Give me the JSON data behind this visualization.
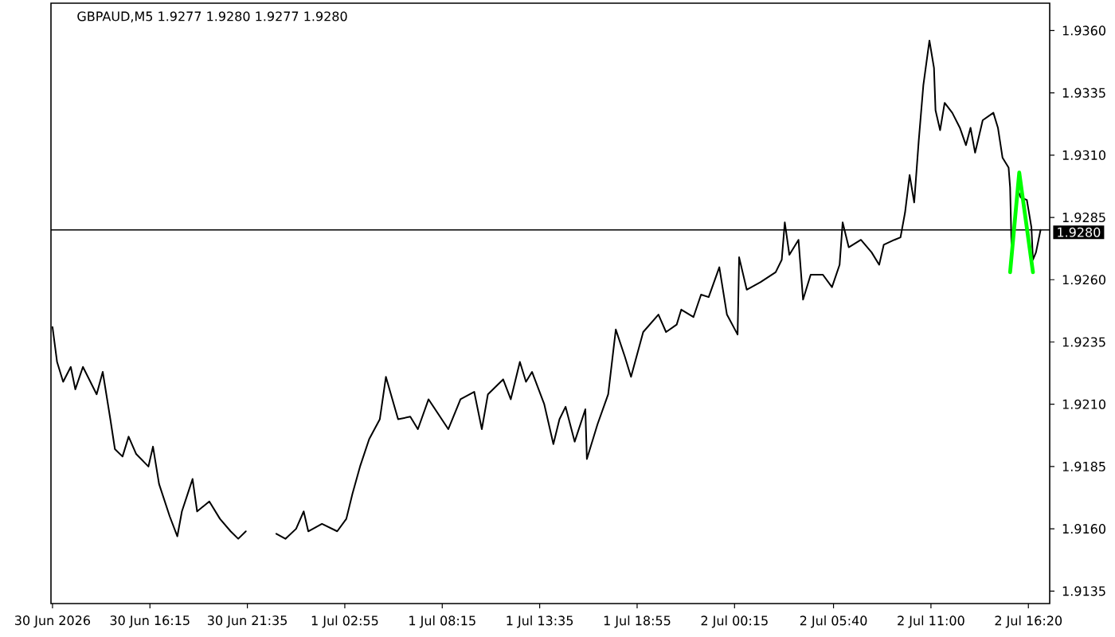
{
  "chart_data": {
    "type": "line",
    "title": "GBPAUD,M5 1.9277 1.9280 1.9277 1.9280",
    "xlim": [
      "2026-06-30T10:50",
      "2026-07-02T17:30"
    ],
    "xticks": [
      {
        "value": "2026-06-30T10:55",
        "label": "30 Jun 2026"
      },
      {
        "value": "2026-06-30T16:15",
        "label": "30 Jun 16:15"
      },
      {
        "value": "2026-06-30T21:35",
        "label": "30 Jun 21:35"
      },
      {
        "value": "2026-07-01T02:55",
        "label": "1 Jul 02:55"
      },
      {
        "value": "2026-07-01T08:15",
        "label": "1 Jul 08:15"
      },
      {
        "value": "2026-07-01T13:35",
        "label": "1 Jul 13:35"
      },
      {
        "value": "2026-07-01T18:55",
        "label": "1 Jul 18:55"
      },
      {
        "value": "2026-07-02T00:15",
        "label": "2 Jul 00:15"
      },
      {
        "value": "2026-07-02T05:40",
        "label": "2 Jul 05:40"
      },
      {
        "value": "2026-07-02T11:00",
        "label": "2 Jul 11:00"
      },
      {
        "value": "2026-07-02T16:20",
        "label": "2 Jul 16:20"
      }
    ],
    "ylim": [
      1.913,
      1.9371
    ],
    "yticks": [
      1.9135,
      {
        "value": 1.916,
        "label": "1.9160"
      },
      1.9185,
      {
        "value": 1.921,
        "label": "1.9210"
      },
      1.9235,
      {
        "value": 1.926,
        "label": "1.9260"
      },
      1.9285,
      {
        "value": 1.931,
        "label": "1.9310"
      },
      1.9335,
      {
        "value": 1.936,
        "label": "1.9360"
      }
    ],
    "ref_lines": [
      {
        "axis": "y",
        "value": 1.928,
        "label": "1.9280",
        "color": "#000000"
      }
    ],
    "series": [
      {
        "color": "#000000",
        "x": [
          "2026-06-30T10:55",
          "2026-06-30T11:10",
          "2026-06-30T11:30",
          "2026-06-30T11:55",
          "2026-06-30T12:10",
          "2026-06-30T12:35",
          "2026-06-30T13:20",
          "2026-06-30T13:40",
          "2026-06-30T14:05",
          "2026-06-30T14:20",
          "2026-06-30T14:45",
          "2026-06-30T15:05",
          "2026-06-30T15:30",
          "2026-06-30T16:10",
          "2026-06-30T16:25",
          "2026-06-30T16:45",
          "2026-06-30T17:20",
          "2026-06-30T17:45",
          "2026-06-30T18:00",
          "2026-06-30T18:35",
          "2026-06-30T18:50",
          "2026-06-30T19:30",
          "2026-06-30T20:05",
          "2026-06-30T20:40",
          "2026-06-30T21:05",
          "2026-06-30T21:30",
          "2026-06-30T22:20",
          "2026-06-30T23:10",
          "2026-06-30T23:40",
          "2026-07-01T00:15",
          "2026-07-01T00:40",
          "2026-07-01T00:55",
          "2026-07-01T01:40",
          "2026-07-01T02:30",
          "2026-07-01T03:00",
          "2026-07-01T03:20",
          "2026-07-01T03:45",
          "2026-07-01T04:15",
          "2026-07-01T04:50",
          "2026-07-01T05:10",
          "2026-07-01T05:50",
          "2026-07-01T06:30",
          "2026-07-01T06:55",
          "2026-07-01T07:30",
          "2026-07-01T08:35",
          "2026-07-01T09:15",
          "2026-07-01T10:00",
          "2026-07-01T10:25",
          "2026-07-01T10:45",
          "2026-07-01T11:35",
          "2026-07-01T12:00",
          "2026-07-01T12:30",
          "2026-07-01T12:50",
          "2026-07-01T13:10",
          "2026-07-01T13:50",
          "2026-07-01T14:20",
          "2026-07-01T14:40",
          "2026-07-01T15:00",
          "2026-07-01T15:30",
          "2026-07-01T16:05",
          "2026-07-01T16:10",
          "2026-07-01T16:45",
          "2026-07-01T17:20",
          "2026-07-01T17:45",
          "2026-07-01T18:15",
          "2026-07-01T18:35",
          "2026-07-01T19:15",
          "2026-07-01T20:05",
          "2026-07-01T20:30",
          "2026-07-01T21:05",
          "2026-07-01T21:20",
          "2026-07-01T22:00",
          "2026-07-01T22:25",
          "2026-07-01T22:50",
          "2026-07-01T23:25",
          "2026-07-01T23:50",
          "2026-07-02T00:25",
          "2026-07-02T00:30",
          "2026-07-02T00:55",
          "2026-07-02T01:40",
          "2026-07-02T02:30",
          "2026-07-02T02:50",
          "2026-07-02T03:00",
          "2026-07-02T03:15",
          "2026-07-02T03:45",
          "2026-07-02T04:00",
          "2026-07-02T04:25",
          "2026-07-02T05:05",
          "2026-07-02T05:35",
          "2026-07-02T06:00",
          "2026-07-02T06:10",
          "2026-07-02T06:30",
          "2026-07-02T07:10",
          "2026-07-02T07:45",
          "2026-07-02T08:10",
          "2026-07-02T08:25",
          "2026-07-02T09:00",
          "2026-07-02T09:20",
          "2026-07-02T09:35",
          "2026-07-02T09:50",
          "2026-07-02T10:05",
          "2026-07-02T10:20",
          "2026-07-02T10:35",
          "2026-07-02T10:55",
          "2026-07-02T11:10",
          "2026-07-02T11:15",
          "2026-07-02T11:30",
          "2026-07-02T11:45",
          "2026-07-02T12:10",
          "2026-07-02T12:35",
          "2026-07-02T12:55",
          "2026-07-02T13:10",
          "2026-07-02T13:25",
          "2026-07-02T13:50",
          "2026-07-02T14:25",
          "2026-07-02T14:40",
          "2026-07-02T14:55",
          "2026-07-02T15:15",
          "2026-07-02T15:20",
          "2026-07-02T15:25",
          "2026-07-02T15:45",
          "2026-07-02T15:55",
          "2026-07-02T16:15",
          "2026-07-02T16:30",
          "2026-07-02T16:35",
          "2026-07-02T16:45",
          "2026-07-02T17:00"
        ],
        "values": [
          1.9241,
          1.9227,
          1.9219,
          1.9225,
          1.9216,
          1.9225,
          1.9214,
          1.9223,
          1.9204,
          1.9192,
          1.9189,
          1.9197,
          1.919,
          1.9185,
          1.9193,
          1.9178,
          1.9165,
          1.9157,
          1.9167,
          1.918,
          1.9167,
          1.9171,
          1.9164,
          1.9159,
          1.9156,
          1.9159,
          null,
          1.9158,
          1.9156,
          1.916,
          1.9167,
          1.9159,
          1.9162,
          1.9159,
          1.9164,
          1.9174,
          1.9185,
          1.9196,
          1.9204,
          1.9221,
          1.9204,
          1.9205,
          1.92,
          1.9212,
          1.92,
          1.9212,
          1.9215,
          1.92,
          1.9214,
          1.922,
          1.9212,
          1.9227,
          1.9219,
          1.9223,
          1.921,
          1.9194,
          1.9204,
          1.9209,
          1.9195,
          1.9208,
          1.9188,
          1.9202,
          1.9214,
          1.924,
          1.9229,
          1.9221,
          1.9239,
          1.9246,
          1.9239,
          1.9242,
          1.9248,
          1.9245,
          1.9254,
          1.9253,
          1.9265,
          1.9246,
          1.9238,
          1.9269,
          1.9256,
          1.9259,
          1.9263,
          1.9268,
          1.9283,
          1.927,
          1.9276,
          1.9252,
          1.9262,
          1.9262,
          1.9257,
          1.9266,
          1.9283,
          1.9273,
          1.9276,
          1.9271,
          1.9266,
          1.9274,
          1.9276,
          1.9277,
          1.9287,
          1.9302,
          1.9291,
          1.9316,
          1.9338,
          1.9356,
          1.9345,
          1.9328,
          1.932,
          1.9331,
          1.9327,
          1.9321,
          1.9314,
          1.9321,
          1.9311,
          1.9324,
          1.9327,
          1.9321,
          1.9309,
          1.9305,
          1.9297,
          1.9272,
          1.9296,
          1.9293,
          1.9292,
          1.9281,
          1.9268,
          1.9271,
          1.928
        ]
      },
      {
        "color": "#00ff00",
        "x": [
          "2026-07-02T15:20",
          "2026-07-02T15:50",
          "2026-07-02T16:35"
        ],
        "values": [
          1.9263,
          1.9303,
          1.9263
        ]
      }
    ]
  }
}
